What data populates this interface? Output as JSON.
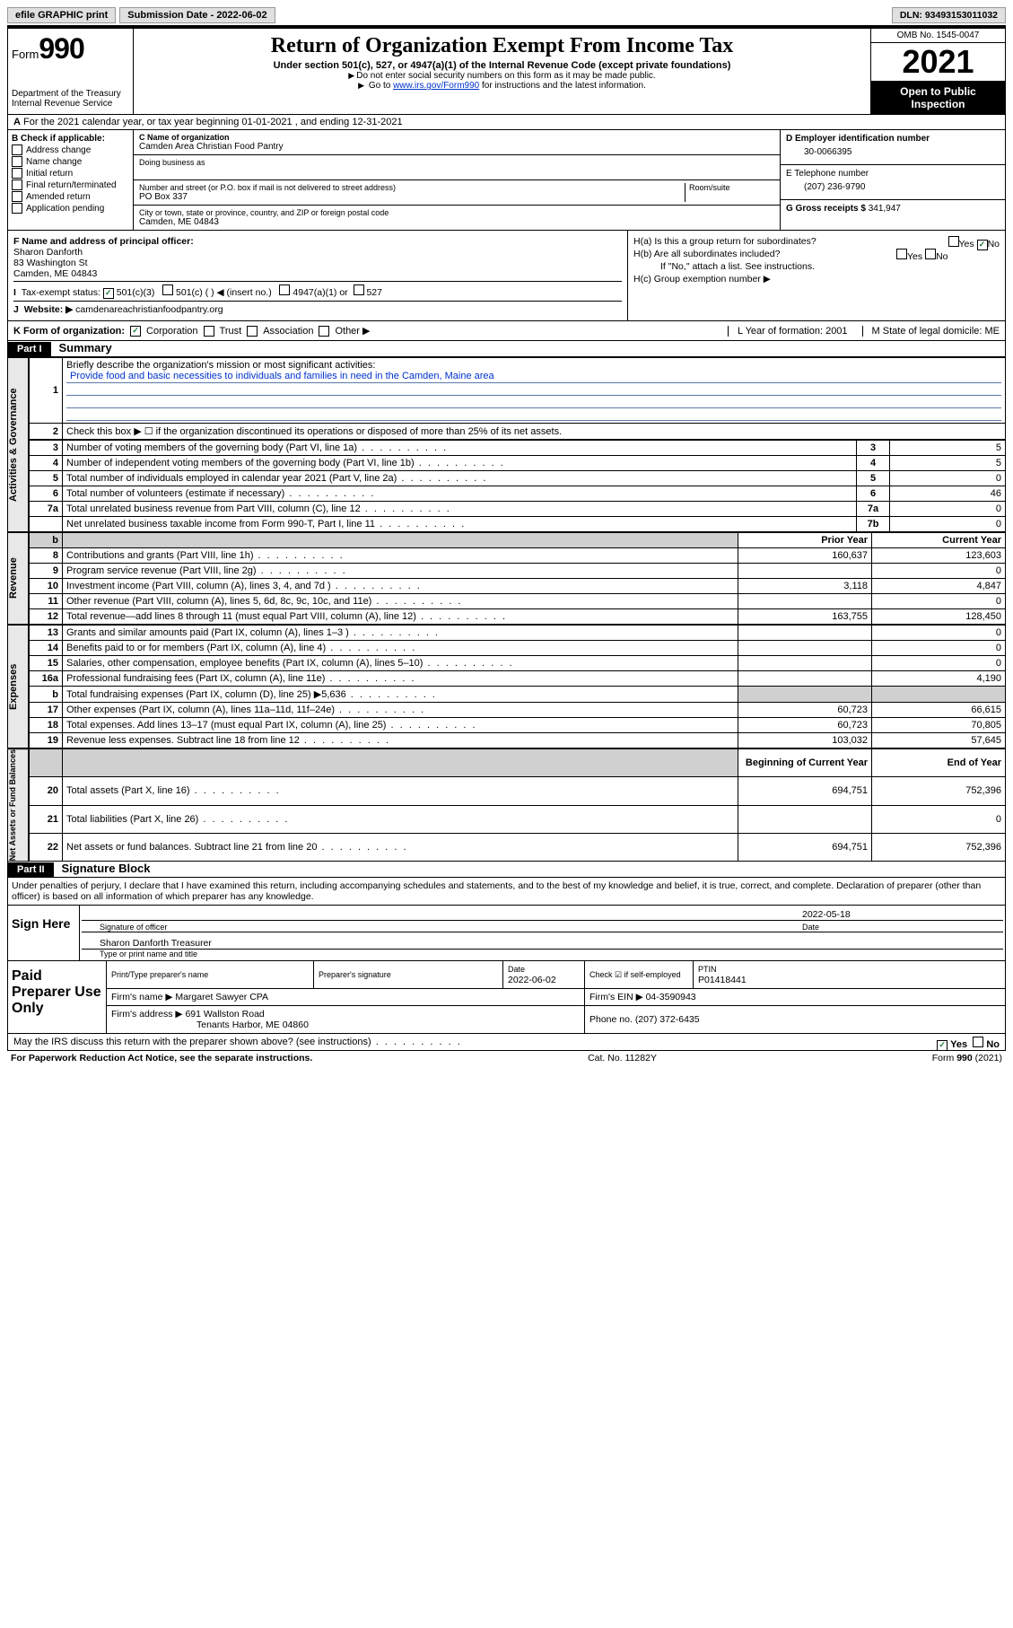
{
  "topbar": {
    "efile": "efile GRAPHIC print",
    "submission_label": "Submission Date - 2022-06-02",
    "dln": "DLN: 93493153011032"
  },
  "header": {
    "form_label": "Form",
    "form_number": "990",
    "dept": "Department of the Treasury",
    "irs": "Internal Revenue Service",
    "title": "Return of Organization Exempt From Income Tax",
    "subtitle": "Under section 501(c), 527, or 4947(a)(1) of the Internal Revenue Code (except private foundations)",
    "note1": "Do not enter social security numbers on this form as it may be made public.",
    "note2_pre": "Go to ",
    "note2_link": "www.irs.gov/Form990",
    "note2_post": " for instructions and the latest information.",
    "omb": "OMB No. 1545-0047",
    "year": "2021",
    "inspect": "Open to Public Inspection"
  },
  "row_a": {
    "text": "For the 2021 calendar year, or tax year beginning 01-01-2021  , and ending 12-31-2021",
    "prefix": "A"
  },
  "section_b": {
    "b_label": "B Check if applicable:",
    "addr_change": "Address change",
    "name_change": "Name change",
    "initial": "Initial return",
    "final": "Final return/terminated",
    "amended": "Amended return",
    "app_pending": "Application pending",
    "c_label": "C Name of organization",
    "c_value": "Camden Area Christian Food Pantry",
    "dba_label": "Doing business as",
    "addr_label": "Number and street (or P.O. box if mail is not delivered to street address)",
    "room_label": "Room/suite",
    "addr_value": "PO Box 337",
    "city_label": "City or town, state or province, country, and ZIP or foreign postal code",
    "city_value": "Camden, ME  04843",
    "d_label": "D Employer identification number",
    "d_value": "30-0066395",
    "e_label": "E Telephone number",
    "e_value": "(207) 236-9790",
    "g_label": "G Gross receipts $",
    "g_value": "341,947"
  },
  "section_fhi": {
    "f_label": "F  Name and address of principal officer:",
    "f_name": "Sharon Danforth",
    "f_addr": "83 Washington St",
    "f_city": "Camden, ME  04843",
    "i_label": "Tax-exempt status:",
    "i_501c3": "501(c)(3)",
    "i_501c": "501(c) (  ) ◀ (insert no.)",
    "i_4947": "4947(a)(1) or",
    "i_527": "527",
    "j_label": "Website: ▶",
    "j_value": "camdenareachristianfoodpantry.org",
    "ha_label": "H(a)  Is this a group return for subordinates?",
    "hb_label": "H(b)  Are all subordinates included?",
    "hb_note": "If \"No,\" attach a list. See instructions.",
    "hc_label": "H(c)  Group exemption number ▶",
    "yes": "Yes",
    "no": "No"
  },
  "row_k": {
    "k_label": "K Form of organization:",
    "corp": "Corporation",
    "trust": "Trust",
    "assoc": "Association",
    "other": "Other ▶",
    "l_label": "L Year of formation: 2001",
    "m_label": "M State of legal domicile: ME"
  },
  "part1": {
    "header": "Part I",
    "title": "Summary",
    "line1": "Briefly describe the organization's mission or most significant activities:",
    "mission": "Provide food and basic necessities to individuals and families in need in the Camden, Maine area",
    "line2": "Check this box ▶ ☐  if the organization discontinued its operations or disposed of more than 25% of its net assets.",
    "vert_ag": "Activities & Governance",
    "vert_rev": "Revenue",
    "vert_exp": "Expenses",
    "vert_net": "Net Assets or Fund Balances",
    "prior_hdr": "Prior Year",
    "current_hdr": "Current Year",
    "bcy_hdr": "Beginning of Current Year",
    "eoy_hdr": "End of Year",
    "lines_ag": [
      {
        "n": "3",
        "d": "Number of voting members of the governing body (Part VI, line 1a)",
        "ln": "3",
        "v": "5"
      },
      {
        "n": "4",
        "d": "Number of independent voting members of the governing body (Part VI, line 1b)",
        "ln": "4",
        "v": "5"
      },
      {
        "n": "5",
        "d": "Total number of individuals employed in calendar year 2021 (Part V, line 2a)",
        "ln": "5",
        "v": "0"
      },
      {
        "n": "6",
        "d": "Total number of volunteers (estimate if necessary)",
        "ln": "6",
        "v": "46"
      },
      {
        "n": "7a",
        "d": "Total unrelated business revenue from Part VIII, column (C), line 12",
        "ln": "7a",
        "v": "0"
      },
      {
        "n": "",
        "d": "Net unrelated business taxable income from Form 990-T, Part I, line 11",
        "ln": "7b",
        "v": "0"
      }
    ],
    "lines_rev": [
      {
        "n": "8",
        "d": "Contributions and grants (Part VIII, line 1h)",
        "p": "160,637",
        "c": "123,603"
      },
      {
        "n": "9",
        "d": "Program service revenue (Part VIII, line 2g)",
        "p": "",
        "c": "0"
      },
      {
        "n": "10",
        "d": "Investment income (Part VIII, column (A), lines 3, 4, and 7d )",
        "p": "3,118",
        "c": "4,847"
      },
      {
        "n": "11",
        "d": "Other revenue (Part VIII, column (A), lines 5, 6d, 8c, 9c, 10c, and 11e)",
        "p": "",
        "c": "0"
      },
      {
        "n": "12",
        "d": "Total revenue—add lines 8 through 11 (must equal Part VIII, column (A), line 12)",
        "p": "163,755",
        "c": "128,450"
      }
    ],
    "lines_exp": [
      {
        "n": "13",
        "d": "Grants and similar amounts paid (Part IX, column (A), lines 1–3 )",
        "p": "",
        "c": "0"
      },
      {
        "n": "14",
        "d": "Benefits paid to or for members (Part IX, column (A), line 4)",
        "p": "",
        "c": "0"
      },
      {
        "n": "15",
        "d": "Salaries, other compensation, employee benefits (Part IX, column (A), lines 5–10)",
        "p": "",
        "c": "0"
      },
      {
        "n": "16a",
        "d": "Professional fundraising fees (Part IX, column (A), line 11e)",
        "p": "",
        "c": "4,190"
      },
      {
        "n": "b",
        "d": "Total fundraising expenses (Part IX, column (D), line 25) ▶5,636",
        "p": "shade",
        "c": "shade"
      },
      {
        "n": "17",
        "d": "Other expenses (Part IX, column (A), lines 11a–11d, 11f–24e)",
        "p": "60,723",
        "c": "66,615"
      },
      {
        "n": "18",
        "d": "Total expenses. Add lines 13–17 (must equal Part IX, column (A), line 25)",
        "p": "60,723",
        "c": "70,805"
      },
      {
        "n": "19",
        "d": "Revenue less expenses. Subtract line 18 from line 12",
        "p": "103,032",
        "c": "57,645"
      }
    ],
    "lines_net": [
      {
        "n": "20",
        "d": "Total assets (Part X, line 16)",
        "p": "694,751",
        "c": "752,396"
      },
      {
        "n": "21",
        "d": "Total liabilities (Part X, line 26)",
        "p": "",
        "c": "0"
      },
      {
        "n": "22",
        "d": "Net assets or fund balances. Subtract line 21 from line 20",
        "p": "694,751",
        "c": "752,396"
      }
    ]
  },
  "part2": {
    "header": "Part II",
    "title": "Signature Block",
    "declaration": "Under penalties of perjury, I declare that I have examined this return, including accompanying schedules and statements, and to the best of my knowledge and belief, it is true, correct, and complete. Declaration of preparer (other than officer) is based on all information of which preparer has any knowledge.",
    "sign_here": "Sign Here",
    "sig_officer": "Signature of officer",
    "date": "Date",
    "date_val": "2022-05-18",
    "name_title": "Sharon Danforth Treasurer",
    "name_title_label": "Type or print name and title",
    "paid_prep": "Paid Preparer Use Only",
    "pt_name_label": "Print/Type preparer's name",
    "pt_sig_label": "Preparer's signature",
    "pt_date_label": "Date",
    "pt_date": "2022-06-02",
    "pt_check_label": "Check ☑ if self-employed",
    "ptin_label": "PTIN",
    "ptin": "P01418441",
    "firm_name_label": "Firm's name    ▶",
    "firm_name": "Margaret Sawyer CPA",
    "firm_ein_label": "Firm's EIN ▶",
    "firm_ein": "04-3590943",
    "firm_addr_label": "Firm's address ▶",
    "firm_addr1": "691 Wallston Road",
    "firm_addr2": "Tenants Harbor, ME  04860",
    "phone_label": "Phone no.",
    "phone": "(207) 372-6435",
    "may_irs": "May the IRS discuss this return with the preparer shown above? (see instructions)",
    "paperwork": "For Paperwork Reduction Act Notice, see the separate instructions.",
    "cat": "Cat. No. 11282Y",
    "form_footer": "Form 990 (2021)"
  }
}
